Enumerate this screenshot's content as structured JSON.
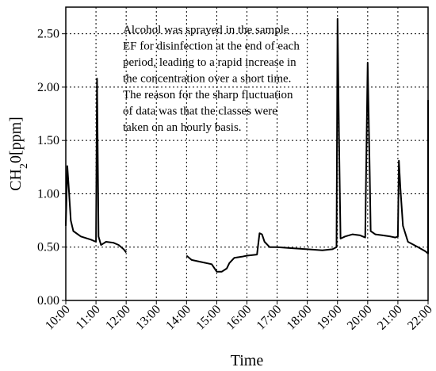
{
  "chart_data": {
    "type": "line",
    "xlabel": "Time",
    "ylabel": "CH2O[ppm]",
    "ylabel_parts": {
      "main": "CH",
      "sub": "2",
      "rest": "0[ppm]"
    },
    "ylim": [
      0,
      2.75
    ],
    "xlim": [
      "10:00",
      "22:00"
    ],
    "grid": true,
    "legend": "none",
    "x_ticks": [
      "10:00",
      "11:00",
      "12:00",
      "13:00",
      "14:00",
      "15:00",
      "16:00",
      "17:00",
      "18:00",
      "19:00",
      "20:00",
      "21:00",
      "22:00"
    ],
    "y_ticks": [
      "0.00",
      "0.50",
      "1.00",
      "1.50",
      "2.00",
      "2.50"
    ],
    "annotation_lines": [
      "Alcohol was sprayed in the sample",
      "EF for disinfection at the end of each",
      "period, leading to a rapid increase in",
      "the concentration over a short time.",
      "The reason for the sharp fluctuation",
      "of data was that the classes were",
      "taken on an hourly basis."
    ],
    "series": [
      {
        "segments": [
          [
            [
              "10:00",
              0.7
            ],
            [
              "10:03",
              1.26
            ],
            [
              "10:06",
              1.05
            ],
            [
              "10:10",
              0.75
            ],
            [
              "10:15",
              0.65
            ],
            [
              "10:30",
              0.6
            ],
            [
              "10:50",
              0.57
            ],
            [
              "11:00",
              0.55
            ],
            [
              "11:02",
              2.08
            ],
            [
              "11:05",
              0.6
            ],
            [
              "11:10",
              0.52
            ],
            [
              "11:20",
              0.55
            ],
            [
              "11:35",
              0.54
            ],
            [
              "11:45",
              0.52
            ],
            [
              "11:55",
              0.48
            ],
            [
              "12:00",
              0.45
            ]
          ],
          [
            [
              "14:00",
              0.42
            ],
            [
              "14:10",
              0.38
            ],
            [
              "14:30",
              0.36
            ],
            [
              "14:50",
              0.34
            ],
            [
              "15:00",
              0.27
            ],
            [
              "15:10",
              0.27
            ],
            [
              "15:20",
              0.3
            ],
            [
              "15:25",
              0.35
            ],
            [
              "15:35",
              0.4
            ],
            [
              "15:50",
              0.41
            ],
            [
              "16:00",
              0.42
            ],
            [
              "16:20",
              0.43
            ],
            [
              "16:25",
              0.63
            ],
            [
              "16:30",
              0.62
            ],
            [
              "16:35",
              0.55
            ],
            [
              "16:45",
              0.5
            ],
            [
              "17:00",
              0.5
            ],
            [
              "17:30",
              0.49
            ],
            [
              "18:00",
              0.48
            ],
            [
              "18:30",
              0.47
            ],
            [
              "18:50",
              0.48
            ],
            [
              "18:58",
              0.5
            ],
            [
              "19:00",
              2.64
            ],
            [
              "19:03",
              1.5
            ],
            [
              "19:06",
              0.58
            ],
            [
              "19:15",
              0.6
            ],
            [
              "19:30",
              0.62
            ],
            [
              "19:45",
              0.61
            ],
            [
              "19:55",
              0.59
            ],
            [
              "20:00",
              2.23
            ],
            [
              "20:04",
              1.2
            ],
            [
              "20:06",
              0.65
            ],
            [
              "20:15",
              0.62
            ],
            [
              "20:30",
              0.61
            ],
            [
              "20:45",
              0.6
            ],
            [
              "20:55",
              0.59
            ],
            [
              "21:00",
              0.6
            ],
            [
              "21:02",
              1.31
            ],
            [
              "21:05",
              1.05
            ],
            [
              "21:10",
              0.7
            ],
            [
              "21:20",
              0.55
            ],
            [
              "21:40",
              0.5
            ],
            [
              "21:55",
              0.46
            ],
            [
              "22:00",
              0.44
            ],
            [
              "22:00",
              1.88
            ]
          ]
        ]
      }
    ]
  }
}
